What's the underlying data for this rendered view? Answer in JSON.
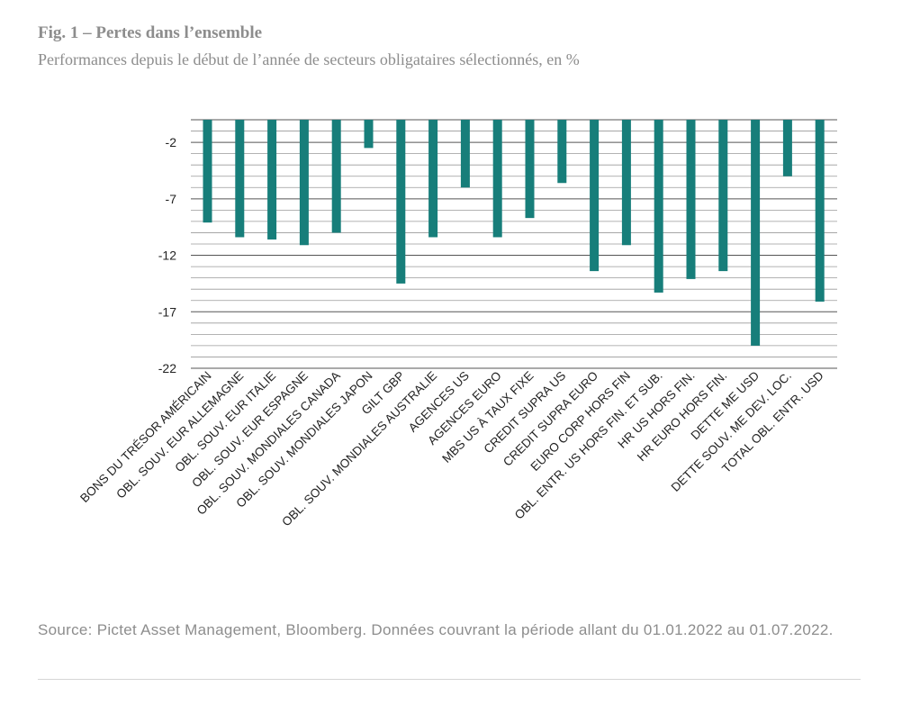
{
  "header": {
    "title": "Fig. 1 – Pertes dans l’ensemble",
    "subtitle": "Performances depuis le début de l’année de secteurs obligataires sélectionnés, en %"
  },
  "footer": {
    "source": "Source: Pictet Asset Management, Bloomberg. Données couvrant la période allant du 01.01.2022 au 01.07.2022."
  },
  "colors": {
    "bar": "#177e7a",
    "gridline": "#9a9a9a",
    "axis_text": "#222222",
    "muted_text": "#8d8d8d"
  },
  "chart_data": {
    "type": "bar",
    "title": "Fig. 1 – Pertes dans l’ensemble",
    "subtitle": "Performances depuis le début de l’année de secteurs obligataires sélectionnés, en %",
    "xlabel": "",
    "ylabel": "",
    "ylim": [
      -22,
      0
    ],
    "yticks": [
      -2,
      -7,
      -12,
      -17,
      -22
    ],
    "ytick_labels": [
      "-2",
      "-7",
      "-12",
      "-17",
      "-22"
    ],
    "grid_step": 1,
    "categories": [
      "BONS DU TRÉSOR AMÉRICAIN",
      "OBL. SOUV. EUR ALLEMAGNE",
      "OBL. SOUV. EUR ITALIE",
      "OBL. SOUV. EUR ESPAGNE",
      "OBL. SOUV. MONDIALES CANADA",
      "OBL. SOUV. MONDIALES JAPON",
      "GILT GBP",
      "OBL. SOUV. MONDIALES AUSTRALIE",
      "AGENCES US",
      "AGENCES EURO",
      "MBS US À TAUX FIXE",
      "CREDIT SUPRA US",
      "CREDIT SUPRA EURO",
      "EURO CORP HORS FIN",
      "OBL. ENTR. US HORS FIN. ET SUB.",
      "HR US HORS FIN.",
      "HR EURO HORS FIN.",
      "DETTE ME USD",
      "DETTE SOUV. ME DEV. LOC.",
      "TOTAL OBL. ENTR. USD"
    ],
    "values": [
      -9.1,
      -10.4,
      -10.6,
      -11.1,
      -10.0,
      -2.5,
      -14.5,
      -10.4,
      -6.0,
      -10.4,
      -8.7,
      -5.6,
      -13.4,
      -11.1,
      -15.3,
      -14.1,
      -13.4,
      -20.0,
      -5.0,
      -16.1
    ]
  }
}
